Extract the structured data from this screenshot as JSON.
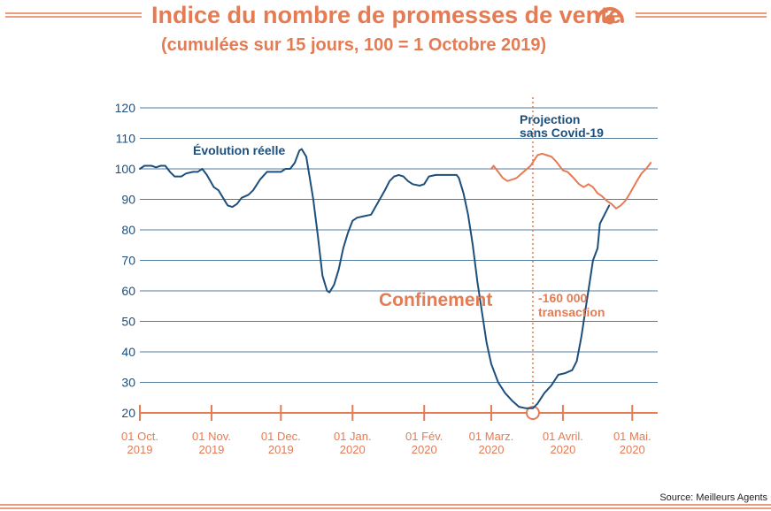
{
  "title": "Indice du nombre de promesses de vente",
  "subtitle": "(cumulées sur 15 jours, 100 = 1 Octobre 2019)",
  "logo_icon": "target-icon",
  "source": "Source: Meilleurs Agents",
  "colors": {
    "accent": "#e57b53",
    "blue": "#1d4f7c",
    "grid": "#1d4f7c"
  },
  "chart_data": {
    "type": "line",
    "ylim": [
      20,
      120
    ],
    "yticks": [
      20,
      30,
      40,
      50,
      60,
      70,
      80,
      90,
      100,
      110,
      120
    ],
    "xlim": [
      0,
      224
    ],
    "xticks": [
      {
        "x": 0,
        "line1": "01 Oct.",
        "line2": "2019"
      },
      {
        "x": 31,
        "line1": "01 Nov.",
        "line2": "2019"
      },
      {
        "x": 61,
        "line1": "01 Dec.",
        "line2": "2019"
      },
      {
        "x": 92,
        "line1": "01 Jan.",
        "line2": "2020"
      },
      {
        "x": 123,
        "line1": "01 Fév.",
        "line2": "2020"
      },
      {
        "x": 152,
        "line1": "01 Marz.",
        "line2": "2020"
      },
      {
        "x": 183,
        "line1": "01 Avril.",
        "line2": "2020"
      },
      {
        "x": 213,
        "line1": "01 Mai.",
        "line2": "2020"
      }
    ],
    "lockdown_x": 170,
    "series": [
      {
        "role": "actual",
        "color": "#1d4f7c",
        "points": [
          [
            0,
            100
          ],
          [
            2,
            101
          ],
          [
            5,
            101
          ],
          [
            7,
            100.5
          ],
          [
            9,
            101
          ],
          [
            11,
            101
          ],
          [
            13,
            99
          ],
          [
            15,
            97.5
          ],
          [
            18,
            97.5
          ],
          [
            20,
            98.5
          ],
          [
            23,
            99
          ],
          [
            25,
            99
          ],
          [
            27,
            100
          ],
          [
            29,
            98
          ],
          [
            32,
            94
          ],
          [
            34,
            93
          ],
          [
            36,
            90.5
          ],
          [
            38,
            88
          ],
          [
            40,
            87.5
          ],
          [
            42,
            88.5
          ],
          [
            44,
            90.5
          ],
          [
            47,
            91.5
          ],
          [
            49,
            93
          ],
          [
            52,
            96.5
          ],
          [
            55,
            99
          ],
          [
            58,
            99
          ],
          [
            61,
            99
          ],
          [
            63,
            100
          ],
          [
            65,
            100
          ],
          [
            67,
            102
          ],
          [
            69,
            106
          ],
          [
            70,
            106.5
          ],
          [
            72,
            104
          ],
          [
            75,
            90
          ],
          [
            77,
            78
          ],
          [
            79,
            65
          ],
          [
            81,
            60
          ],
          [
            82,
            59.5
          ],
          [
            84,
            62
          ],
          [
            86,
            67
          ],
          [
            88,
            74
          ],
          [
            90,
            79
          ],
          [
            92,
            83
          ],
          [
            94,
            84
          ],
          [
            97,
            84.5
          ],
          [
            100,
            85
          ],
          [
            103,
            89
          ],
          [
            106,
            93
          ],
          [
            108,
            96
          ],
          [
            110,
            97.5
          ],
          [
            112,
            98
          ],
          [
            114,
            97.5
          ],
          [
            116,
            96
          ],
          [
            118,
            95
          ],
          [
            121,
            94.5
          ],
          [
            123,
            95
          ],
          [
            125,
            97.5
          ],
          [
            128,
            98
          ],
          [
            131,
            98
          ],
          [
            134,
            98
          ],
          [
            137,
            98
          ],
          [
            138,
            97
          ],
          [
            140,
            92
          ],
          [
            142,
            85
          ],
          [
            144,
            75
          ],
          [
            146,
            63
          ],
          [
            148,
            53
          ],
          [
            150,
            43
          ],
          [
            152,
            36
          ],
          [
            155,
            30
          ],
          [
            158,
            26.5
          ],
          [
            161,
            24
          ],
          [
            164,
            22
          ],
          [
            167,
            21.5
          ],
          [
            170,
            21.5
          ],
          [
            172,
            23
          ],
          [
            175,
            26.5
          ],
          [
            178,
            29
          ],
          [
            181,
            32.5
          ],
          [
            184,
            33
          ],
          [
            187,
            34
          ],
          [
            189,
            37
          ],
          [
            191,
            45
          ],
          [
            193,
            55
          ],
          [
            195,
            65
          ],
          [
            196,
            70
          ],
          [
            197,
            72
          ],
          [
            198,
            74
          ],
          [
            199,
            82
          ],
          [
            201,
            85
          ],
          [
            203,
            88
          ]
        ]
      },
      {
        "role": "projection",
        "color": "#e57b53",
        "points": [
          [
            152,
            100
          ],
          [
            153,
            101
          ],
          [
            155,
            99
          ],
          [
            157,
            97
          ],
          [
            159,
            96
          ],
          [
            161,
            96.5
          ],
          [
            163,
            97
          ],
          [
            166,
            99
          ],
          [
            169,
            101
          ],
          [
            172,
            104.5
          ],
          [
            174,
            105
          ],
          [
            176,
            104.5
          ],
          [
            178,
            104
          ],
          [
            180,
            102.5
          ],
          [
            183,
            99.5
          ],
          [
            185,
            99
          ],
          [
            187,
            97.5
          ],
          [
            190,
            95
          ],
          [
            192,
            94
          ],
          [
            194,
            95
          ],
          [
            196,
            94
          ],
          [
            198,
            92
          ],
          [
            200,
            91
          ],
          [
            202,
            89.5
          ],
          [
            204,
            88.5
          ],
          [
            206,
            87
          ],
          [
            208,
            88
          ],
          [
            210,
            89.5
          ],
          [
            212,
            92
          ],
          [
            215,
            96
          ],
          [
            217,
            98.5
          ],
          [
            219,
            100
          ],
          [
            221,
            102
          ]
        ]
      }
    ],
    "annotations": {
      "actual_label": "Évolution réelle",
      "projection_line1": "Projection",
      "projection_line2": "sans Covid-19",
      "lockdown_label": "Confinement",
      "gap_line1": "-160 000",
      "gap_line2": "transaction"
    }
  }
}
